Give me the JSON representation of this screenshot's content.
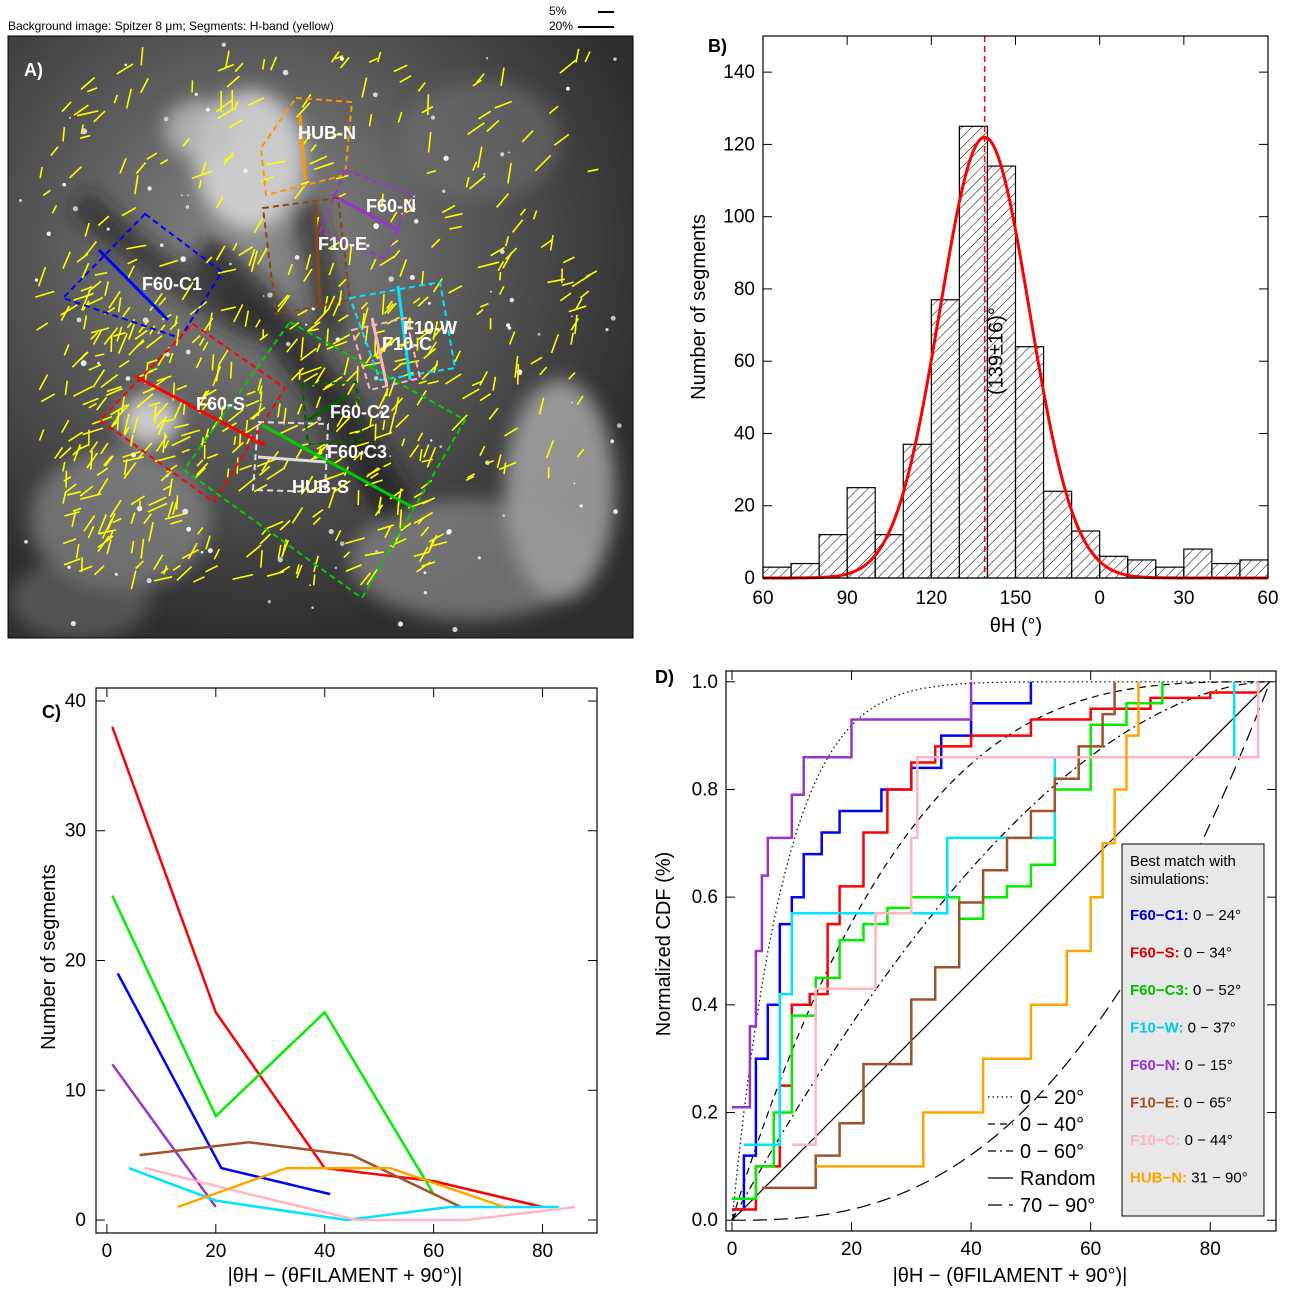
{
  "panel_a": {
    "panel_label": "A)",
    "caption": "Background image: Spitzer 8 μm; Segments: H-band (yellow)",
    "scale_5": "5%",
    "scale_20": "20%",
    "labels": [
      {
        "text": "HUB-N",
        "color": "#ff9900"
      },
      {
        "text": "F60-N",
        "color": "#9933cc"
      },
      {
        "text": "F10-E",
        "color": "#8b4513"
      },
      {
        "text": "F60-C1",
        "color": "#0000ff"
      },
      {
        "text": "F10-W",
        "color": "#00e5ff"
      },
      {
        "text": "F10-C",
        "color": "#ffb6c1"
      },
      {
        "text": "F60-S",
        "color": "#ff0000"
      },
      {
        "text": "F60-C2",
        "color": "#006400"
      },
      {
        "text": "F60-C3",
        "color": "#00cc00"
      },
      {
        "text": "HUB-S",
        "color": "#dddddd"
      }
    ],
    "segment_color": "#ffff00"
  },
  "chart_data": [
    {
      "panel": "B",
      "type": "bar",
      "panel_label": "B)",
      "xlabel": "θH (°)",
      "ylabel": "Number of segments",
      "x_tick_labels": [
        "60",
        "90",
        "120",
        "150",
        "0",
        "30",
        "60"
      ],
      "x_tick_positions_deg": [
        60,
        90,
        120,
        150,
        180,
        210,
        240
      ],
      "y_ticks": [
        0,
        20,
        40,
        60,
        80,
        100,
        120,
        140
      ],
      "xlim": [
        60,
        240
      ],
      "ylim": [
        0,
        150
      ],
      "bin_edges_deg": [
        60,
        70,
        80,
        90,
        100,
        110,
        120,
        130,
        140,
        150,
        160,
        170,
        180,
        190,
        200,
        210,
        220,
        230,
        240
      ],
      "counts": [
        3,
        4,
        12,
        25,
        12,
        37,
        77,
        125,
        114,
        64,
        24,
        13,
        6,
        5,
        3,
        8,
        4,
        5
      ],
      "fit": {
        "type": "gaussian",
        "peak": 122,
        "center_deg": 139,
        "sigma_deg": 16,
        "color": "#ff0000"
      },
      "mean_line_deg": 139,
      "annotation": "(139±16)°"
    },
    {
      "panel": "C",
      "type": "line",
      "panel_label": "C)",
      "xlabel": "|θH − (θFILAMENT + 90°)|",
      "ylabel": "Number of segments",
      "xlim": [
        -2,
        90
      ],
      "ylim": [
        -1,
        41
      ],
      "x_ticks": [
        0,
        20,
        40,
        60,
        80
      ],
      "y_ticks": [
        0,
        10,
        20,
        30,
        40
      ],
      "series": [
        {
          "color": "#ff0000",
          "points": [
            [
              1,
              38
            ],
            [
              20,
              16
            ],
            [
              40,
              4
            ],
            [
              60,
              3
            ],
            [
              80,
              1
            ]
          ]
        },
        {
          "color": "#00ee00",
          "points": [
            [
              1,
              25
            ],
            [
              20,
              8
            ],
            [
              40,
              16
            ],
            [
              60,
              2
            ]
          ]
        },
        {
          "color": "#0000ff",
          "points": [
            [
              2,
              19
            ],
            [
              21,
              4
            ],
            [
              41,
              2
            ]
          ]
        },
        {
          "color": "#9933cc",
          "points": [
            [
              1,
              12
            ],
            [
              20,
              1
            ]
          ]
        },
        {
          "color": "#a0522d",
          "points": [
            [
              6,
              5
            ],
            [
              26,
              6
            ],
            [
              45,
              5
            ],
            [
              65,
              1
            ]
          ]
        },
        {
          "color": "#00e5ff",
          "points": [
            [
              4,
              4
            ],
            [
              20,
              1.5
            ],
            [
              44,
              0
            ],
            [
              63,
              1
            ],
            [
              83,
              1
            ]
          ]
        },
        {
          "color": "#ffb6c1",
          "points": [
            [
              7,
              4
            ],
            [
              26,
              2
            ],
            [
              46,
              0
            ],
            [
              66,
              0
            ],
            [
              86,
              1
            ]
          ]
        },
        {
          "color": "#ffa500",
          "points": [
            [
              13,
              1
            ],
            [
              33,
              4
            ],
            [
              52,
              4
            ],
            [
              73,
              1
            ]
          ]
        }
      ]
    },
    {
      "panel": "D",
      "type": "line",
      "panel_label": "D)",
      "xlabel": "|θH − (θFILAMENT + 90°)|",
      "ylabel": "Normalized CDF (%)",
      "xlim": [
        -1,
        91
      ],
      "ylim": [
        -0.02,
        1.02
      ],
      "x_ticks": [
        0,
        20,
        40,
        60,
        80
      ],
      "y_ticks": [
        "0.0",
        "0.2",
        "0.4",
        "0.6",
        "0.8",
        "1.0"
      ],
      "reference_legend": [
        {
          "label": "0 − 20°",
          "dash": "dotted"
        },
        {
          "label": "0 − 40°",
          "dash": "dashed"
        },
        {
          "label": "0 − 60°",
          "dash": "dashdot"
        },
        {
          "label": "Random",
          "dash": "solid"
        },
        {
          "label": "70 − 90°",
          "dash": "longdash"
        }
      ],
      "best_match_title": "Best match with simulations:",
      "best_match": [
        {
          "name": "F60−C1:",
          "range": "0 − 24°",
          "color": "#0000cc"
        },
        {
          "name": "F60−S:",
          "range": "0 − 34°",
          "color": "#dd0000"
        },
        {
          "name": "F60−C3:",
          "range": "0 − 52°",
          "color": "#00bb00"
        },
        {
          "name": "F10−W:",
          "range": "0 − 37°",
          "color": "#00ccee"
        },
        {
          "name": "F60−N:",
          "range": "0 − 15°",
          "color": "#9933cc"
        },
        {
          "name": "F10−E:",
          "range": "0 − 65°",
          "color": "#a0522d"
        },
        {
          "name": "F10−C:",
          "range": "0 − 44°",
          "color": "#ffb6c1"
        },
        {
          "name": "HUB−N:",
          "range": "31 − 90°",
          "color": "#ffa500"
        }
      ],
      "series": [
        {
          "name": "F60-C1",
          "color": "#0000ff",
          "points": [
            [
              0,
              0.02
            ],
            [
              2,
              0.12
            ],
            [
              4,
              0.3
            ],
            [
              6,
              0.4
            ],
            [
              8,
              0.55
            ],
            [
              10,
              0.6
            ],
            [
              12,
              0.68
            ],
            [
              15,
              0.72
            ],
            [
              18,
              0.76
            ],
            [
              22,
              0.76
            ],
            [
              25,
              0.8
            ],
            [
              30,
              0.84
            ],
            [
              35,
              0.9
            ],
            [
              40,
              0.96
            ],
            [
              48,
              0.96
            ],
            [
              50,
              1.0
            ]
          ]
        },
        {
          "name": "F60-S",
          "color": "#ff0000",
          "points": [
            [
              0,
              0.02
            ],
            [
              4,
              0.1
            ],
            [
              8,
              0.25
            ],
            [
              10,
              0.4
            ],
            [
              13,
              0.42
            ],
            [
              16,
              0.55
            ],
            [
              18,
              0.62
            ],
            [
              22,
              0.72
            ],
            [
              26,
              0.8
            ],
            [
              30,
              0.85
            ],
            [
              34,
              0.88
            ],
            [
              40,
              0.9
            ],
            [
              50,
              0.93
            ],
            [
              60,
              0.95
            ],
            [
              70,
              0.97
            ],
            [
              80,
              0.98
            ],
            [
              88,
              1.0
            ]
          ]
        },
        {
          "name": "F60-C3",
          "color": "#00ee00",
          "points": [
            [
              0,
              0.04
            ],
            [
              4,
              0.1
            ],
            [
              7,
              0.2
            ],
            [
              10,
              0.38
            ],
            [
              14,
              0.45
            ],
            [
              18,
              0.52
            ],
            [
              22,
              0.55
            ],
            [
              26,
              0.58
            ],
            [
              30,
              0.6
            ],
            [
              34,
              0.6
            ],
            [
              38,
              0.56
            ],
            [
              42,
              0.6
            ],
            [
              46,
              0.62
            ],
            [
              50,
              0.66
            ],
            [
              54,
              0.8
            ],
            [
              60,
              0.92
            ],
            [
              66,
              0.96
            ],
            [
              72,
              1.0
            ]
          ]
        },
        {
          "name": "F10-W",
          "color": "#00e5ff",
          "points": [
            [
              2,
              0.14
            ],
            [
              8,
              0.14
            ],
            [
              8,
              0.42
            ],
            [
              10,
              0.57
            ],
            [
              30,
              0.57
            ],
            [
              34,
              0.57
            ],
            [
              36,
              0.71
            ],
            [
              52,
              0.71
            ],
            [
              54,
              0.86
            ],
            [
              80,
              0.86
            ],
            [
              82,
              0.86
            ],
            [
              84,
              1.0
            ]
          ]
        },
        {
          "name": "F60-N",
          "color": "#9933cc",
          "points": [
            [
              0,
              0.21
            ],
            [
              1,
              0.21
            ],
            [
              3,
              0.36
            ],
            [
              4,
              0.5
            ],
            [
              5,
              0.64
            ],
            [
              6,
              0.71
            ],
            [
              8,
              0.71
            ],
            [
              10,
              0.79
            ],
            [
              12,
              0.86
            ],
            [
              18,
              0.86
            ],
            [
              20,
              0.93
            ],
            [
              26,
              0.93
            ],
            [
              30,
              0.93
            ],
            [
              36,
              0.93
            ],
            [
              40,
              1.0
            ]
          ]
        },
        {
          "name": "F10-E",
          "color": "#a0522d",
          "points": [
            [
              5,
              0.06
            ],
            [
              12,
              0.06
            ],
            [
              14,
              0.12
            ],
            [
              18,
              0.18
            ],
            [
              22,
              0.29
            ],
            [
              26,
              0.29
            ],
            [
              28,
              0.29
            ],
            [
              30,
              0.41
            ],
            [
              34,
              0.47
            ],
            [
              38,
              0.59
            ],
            [
              42,
              0.65
            ],
            [
              46,
              0.71
            ],
            [
              50,
              0.76
            ],
            [
              54,
              0.82
            ],
            [
              58,
              0.88
            ],
            [
              62,
              0.94
            ],
            [
              64,
              1.0
            ]
          ]
        },
        {
          "name": "F10-C",
          "color": "#ffb6c1",
          "points": [
            [
              10,
              0.14
            ],
            [
              12,
              0.14
            ],
            [
              14,
              0.43
            ],
            [
              22,
              0.43
            ],
            [
              24,
              0.57
            ],
            [
              28,
              0.57
            ],
            [
              30,
              0.71
            ],
            [
              31,
              0.86
            ],
            [
              88,
              0.86
            ],
            [
              88,
              1.0
            ]
          ]
        },
        {
          "name": "HUB-N",
          "color": "#ffa500",
          "points": [
            [
              14,
              0.1
            ],
            [
              31,
              0.1
            ],
            [
              32,
              0.2
            ],
            [
              40,
              0.2
            ],
            [
              42,
              0.3
            ],
            [
              50,
              0.4
            ],
            [
              56,
              0.5
            ],
            [
              60,
              0.6
            ],
            [
              62,
              0.7
            ],
            [
              64,
              0.8
            ],
            [
              66,
              0.9
            ],
            [
              68,
              1.0
            ]
          ]
        }
      ]
    }
  ]
}
